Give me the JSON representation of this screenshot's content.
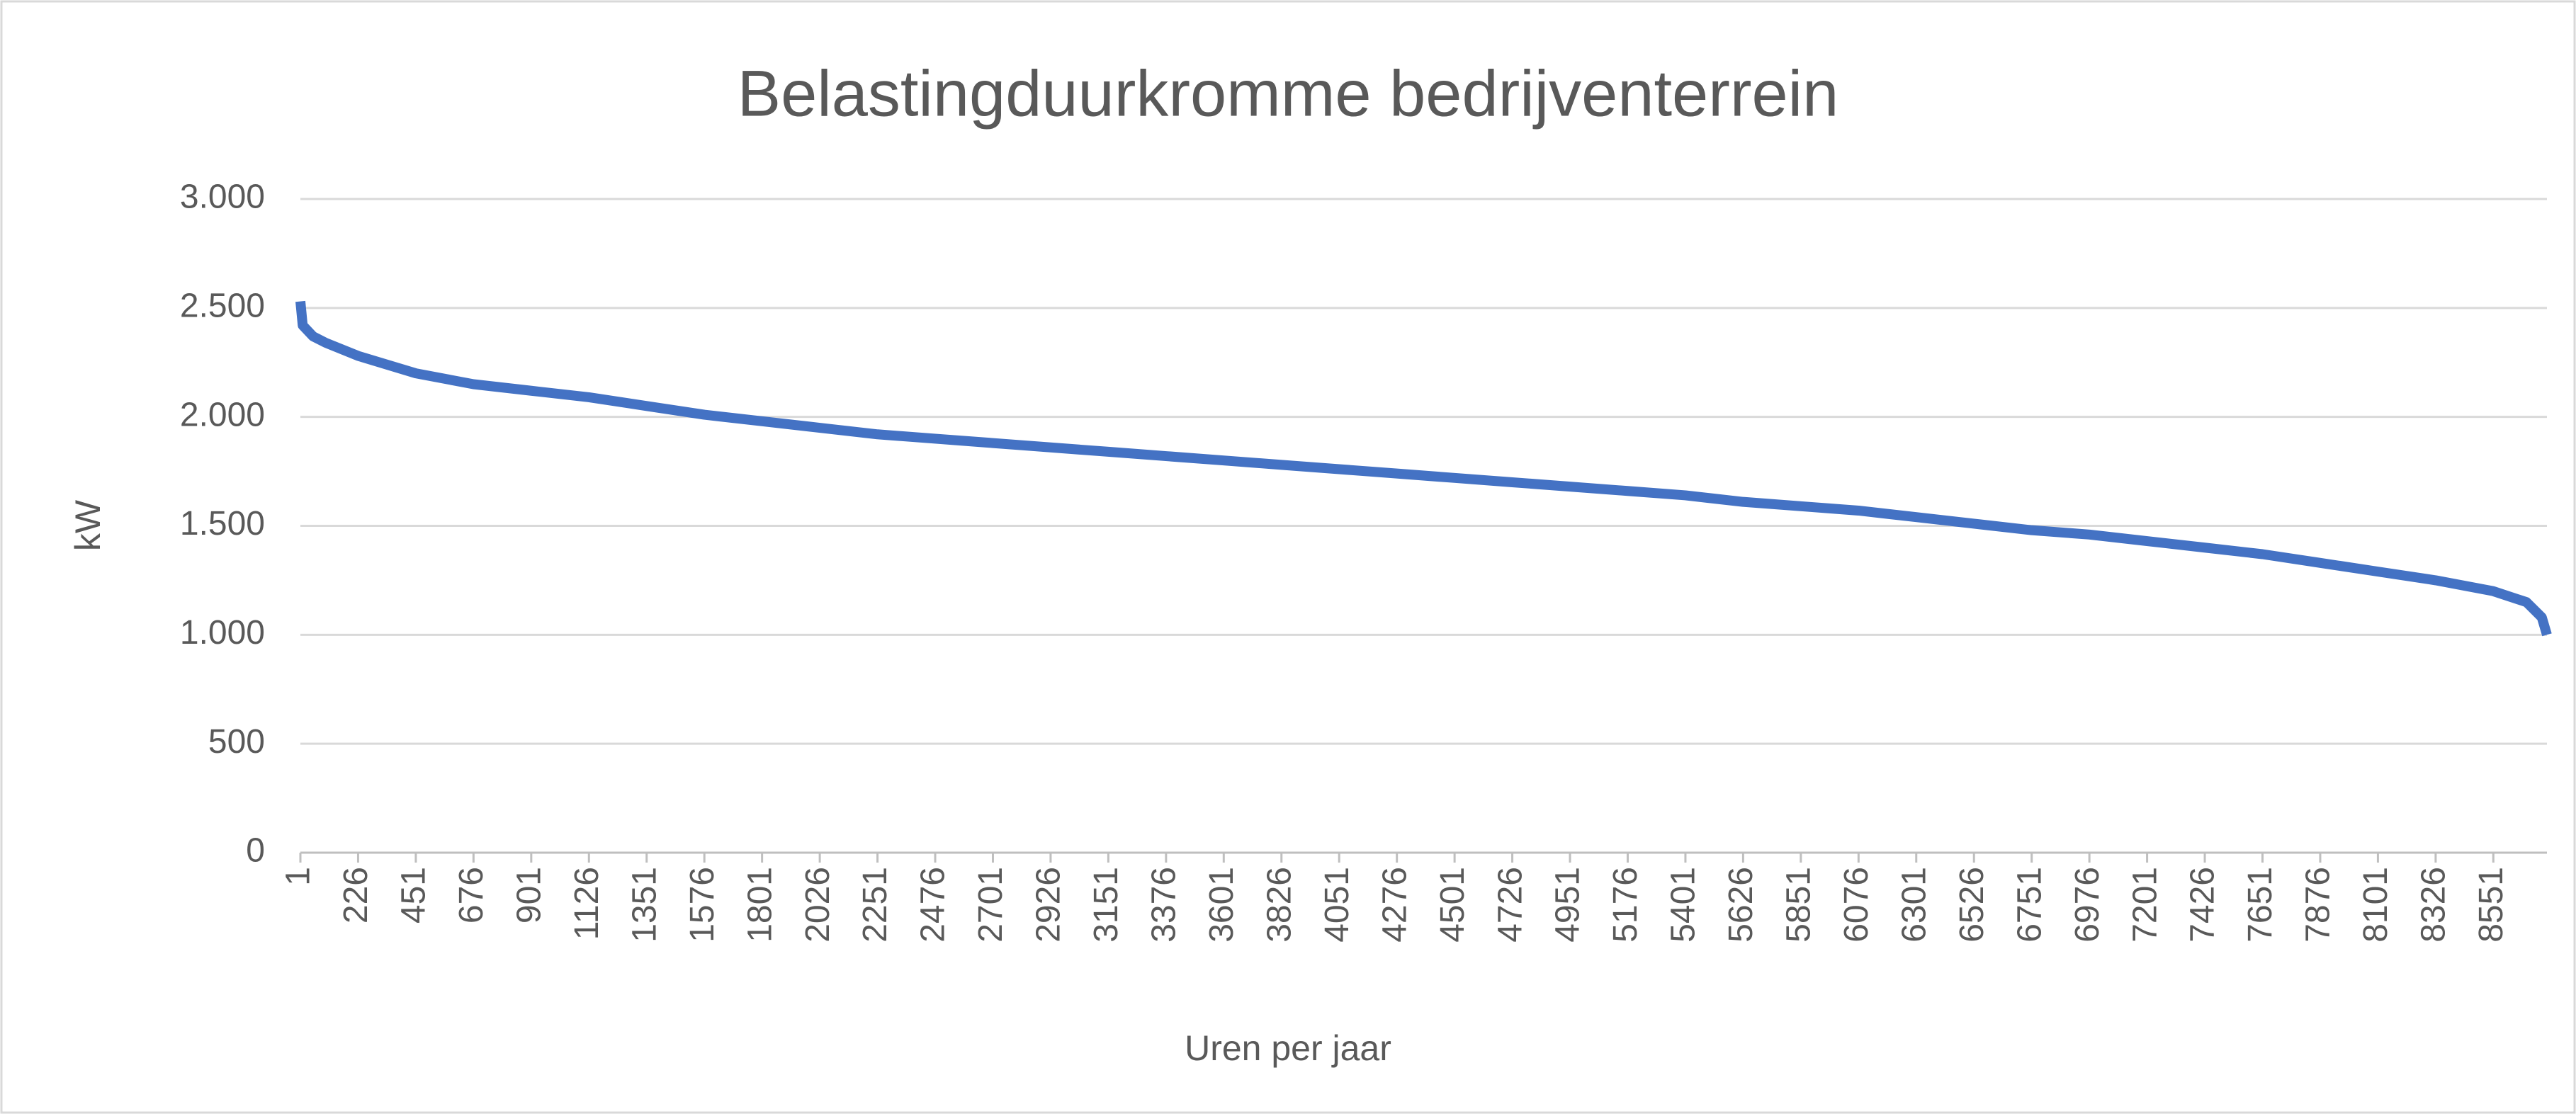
{
  "chart_data": {
    "type": "line",
    "title": "Belastingduurkromme bedrijventerrein",
    "x_label": "Uren per jaar",
    "y_label": "kW",
    "x": [
      1,
      10,
      50,
      100,
      226,
      451,
      676,
      901,
      1126,
      1351,
      1576,
      1801,
      2026,
      2251,
      2476,
      2701,
      2926,
      3151,
      3376,
      3601,
      3826,
      4051,
      4276,
      4501,
      4726,
      4951,
      5176,
      5401,
      5626,
      5851,
      6076,
      6301,
      6526,
      6751,
      6976,
      7201,
      7426,
      7651,
      7876,
      8101,
      8326,
      8551,
      8680,
      8740,
      8760
    ],
    "series": [
      {
        "name": "kW",
        "color": "#4472c4",
        "values": [
          2530,
          2420,
          2370,
          2340,
          2280,
          2200,
          2150,
          2120,
          2090,
          2050,
          2010,
          1980,
          1950,
          1920,
          1900,
          1880,
          1860,
          1840,
          1820,
          1800,
          1780,
          1760,
          1740,
          1720,
          1700,
          1680,
          1660,
          1640,
          1610,
          1590,
          1570,
          1540,
          1510,
          1480,
          1460,
          1430,
          1400,
          1370,
          1330,
          1290,
          1250,
          1200,
          1150,
          1080,
          1000
        ]
      }
    ],
    "xlim": [
      1,
      8760
    ],
    "xticks": [
      1,
      226,
      451,
      676,
      901,
      1126,
      1351,
      1576,
      1801,
      2026,
      2251,
      2476,
      2701,
      2926,
      3151,
      3376,
      3601,
      3826,
      4051,
      4276,
      4501,
      4726,
      4951,
      5176,
      5401,
      5626,
      5851,
      6076,
      6301,
      6526,
      6751,
      6976,
      7201,
      7426,
      7651,
      7876,
      8101,
      8326,
      8551
    ],
    "ylim": [
      0,
      3000
    ],
    "yticks": [
      0,
      500,
      {
        "value": 1000,
        "label": "1.000"
      },
      {
        "value": 1500,
        "label": "1.500"
      },
      {
        "value": 2000,
        "label": "2.000"
      },
      {
        "value": 2500,
        "label": "2.500"
      },
      {
        "value": 3000,
        "label": "3.000"
      }
    ],
    "grid": true
  }
}
